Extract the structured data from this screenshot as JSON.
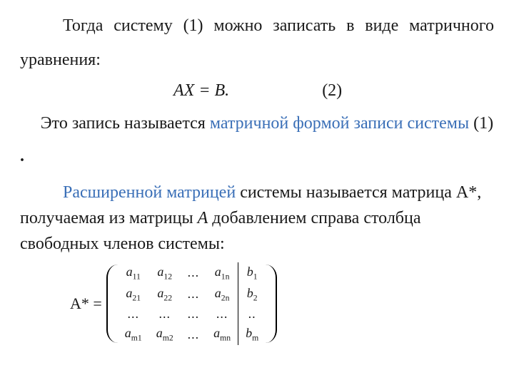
{
  "colors": {
    "text": "#1a1a1a",
    "term_blue": "#3a6fb7",
    "background": "#ffffff",
    "rule": "#000000"
  },
  "fonts": {
    "family": "Times New Roman",
    "body_size_pt": 18,
    "matrix_size_pt": 14
  },
  "para1_a": "Тогда  систему (1) можно записать в виде матричного уравнения:",
  "equation": {
    "text": "AX = B.",
    "number": "(2)"
  },
  "para2_a": "Это запись называется  ",
  "para2_term": "матричной формой записи системы",
  "para2_b": " (1) ",
  "para2_dot": ".",
  "para3_term": "Расширенной матрицей",
  "para3_a": "   системы называется матрица ",
  "para3_astar": "A*",
  "para3_b": ", получаемая из матрицы ",
  "para3_A": "A",
  "para3_c": " добавлением справа столбца свободных членов системы:",
  "matrix": {
    "label": "A* =",
    "rows": [
      [
        "a",
        "11",
        "a",
        "12",
        "...",
        "a",
        "1n",
        "b",
        "1"
      ],
      [
        "a",
        "21",
        "a",
        "22",
        "...",
        "a",
        "2n",
        "b",
        "2"
      ],
      [
        "...",
        "",
        "...",
        "",
        "...",
        "...",
        "",
        "..",
        ""
      ],
      [
        "a",
        "m1",
        "a",
        "m2",
        "...",
        "a",
        "mn",
        "b",
        "m"
      ]
    ]
  }
}
